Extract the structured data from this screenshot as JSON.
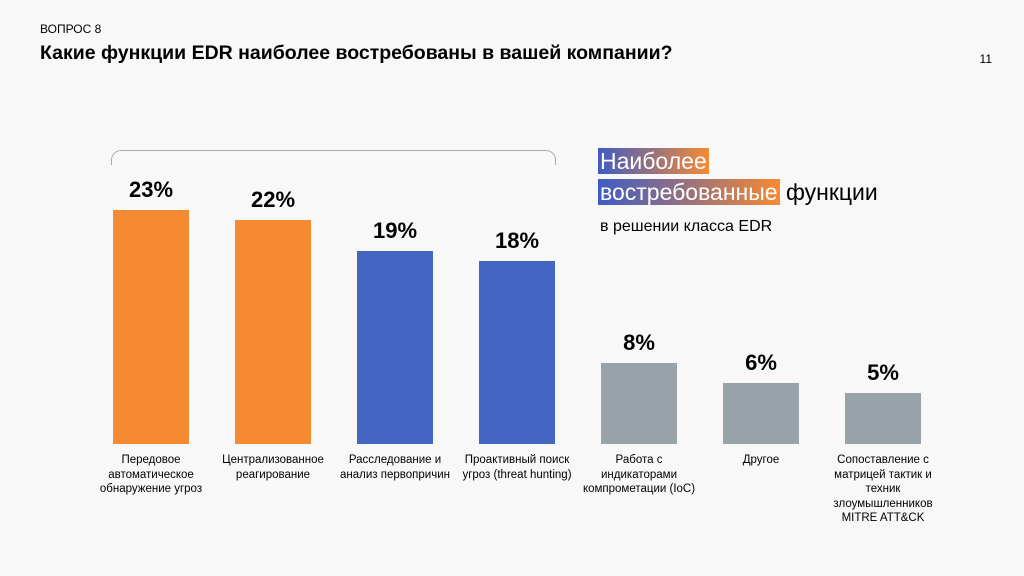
{
  "header": {
    "question": "ВОПРОС 8",
    "title": "Какие функции EDR наиболее востребованы в вашей компании?",
    "page_number": "11"
  },
  "highlight": {
    "line1": "Наиболее",
    "line2_highlight": "востребованные",
    "line2_rest": " функции",
    "subtitle": "в решении класса EDR"
  },
  "colors": {
    "orange": "#f58a33",
    "blue": "#4266c2",
    "gray": "#98a3a9"
  },
  "chart_data": {
    "type": "bar",
    "categories": [
      "Передовое автоматическое обнаружение угроз",
      "Централизованное реагирование",
      "Расследование и анализ первопричин",
      "Проактивный поиск угроз (threat hunting)",
      "Работа с индикаторами компрометации (IoC)",
      "Другое",
      "Сопоставление с матрицей тактик и техник злоумышленников MITRE ATT&CK"
    ],
    "values": [
      23,
      22,
      19,
      18,
      8,
      6,
      5
    ],
    "value_labels": [
      "23%",
      "22%",
      "19%",
      "18%",
      "8%",
      "6%",
      "5%"
    ],
    "bar_colors": [
      "orange",
      "orange",
      "blue",
      "blue",
      "gray",
      "gray",
      "gray"
    ],
    "ylim": [
      0,
      25
    ],
    "grid": false
  }
}
